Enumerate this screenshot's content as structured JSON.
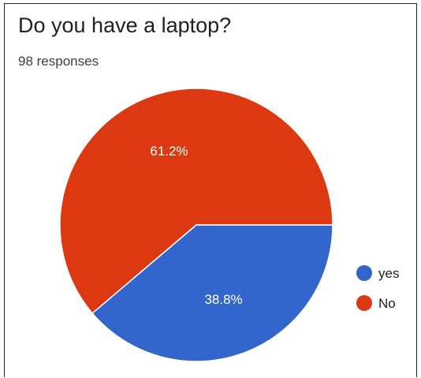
{
  "header": {
    "title": "Do you have a laptop?",
    "subtitle": "98 responses"
  },
  "chart_data": {
    "type": "pie",
    "title": "Do you have a laptop?",
    "subtitle": "98 responses",
    "slices": [
      {
        "label": "yes",
        "value": 38.8,
        "display": "38.8%",
        "color": "#3366cc"
      },
      {
        "label": "No",
        "value": 61.2,
        "display": "61.2%",
        "color": "#dc3912"
      }
    ],
    "legend_position": "right",
    "start_angle_direction": "slices drawn clockwise from 3 o'clock"
  }
}
